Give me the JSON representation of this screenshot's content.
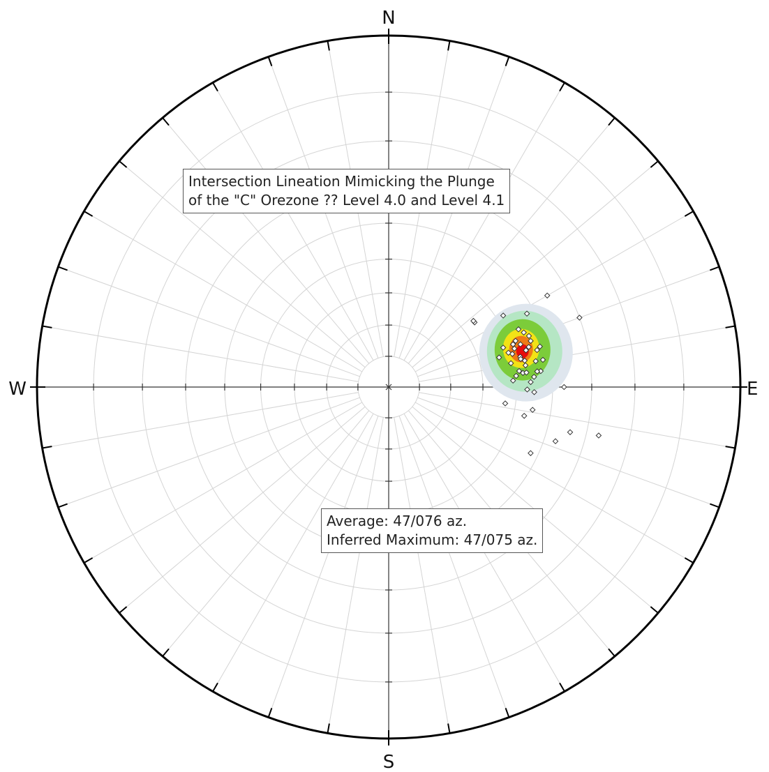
{
  "plot": {
    "compass": {
      "north": "N",
      "south": "S",
      "east": "E",
      "west": "W"
    },
    "colors": {
      "primitive": "#ffffff",
      "grid": "#d4d4d4",
      "axis": "#333333",
      "outline": "#000000",
      "contour_outer": "#dfe6ee",
      "contour_mid": "#b5e6c4",
      "contour_green": "#7ccc3a",
      "contour_yellow": "#f2e216",
      "contour_orange": "#ee7a16",
      "contour_red": "#e80c0c"
    }
  },
  "title_box": {
    "line1": "Intersection Lineation Mimicking the Plunge",
    "line2": "of the \"C\" Orezone ?? Level 4.0 and Level 4.1"
  },
  "stats_box": {
    "line1": "Average: 47/076 az.",
    "line2": "Inferred Maximum: 47/075 az."
  },
  "chart_data": {
    "type": "scatter",
    "projection": "stereonet (lower hemisphere)",
    "title": "Intersection Lineation Mimicking the Plunge of the \"C\" Orezone ?? Level 4.0 and Level 4.1",
    "average": {
      "plunge": 47,
      "trend": 76
    },
    "inferred_maximum": {
      "plunge": 47,
      "trend": 75
    },
    "lineations": [
      {
        "plunge": 37,
        "trend": 90
      },
      {
        "plunge": 48,
        "trend": 58
      },
      {
        "plunge": 48,
        "trend": 84
      },
      {
        "plunge": 30,
        "trend": 70
      },
      {
        "plunge": 35,
        "trend": 60
      },
      {
        "plunge": 34,
        "trend": 104
      },
      {
        "plunge": 45,
        "trend": 99
      },
      {
        "plunge": 47,
        "trend": 102
      },
      {
        "plunge": 37,
        "trend": 108
      },
      {
        "plunge": 42,
        "trend": 115
      },
      {
        "plunge": 27,
        "trend": 103
      },
      {
        "plunge": 56,
        "trend": 53
      },
      {
        "plunge": 56,
        "trend": 52
      },
      {
        "plunge": 52,
        "trend": 71
      },
      {
        "plunge": 54,
        "trend": 75
      },
      {
        "plunge": 48,
        "trend": 77
      },
      {
        "plunge": 49,
        "trend": 71
      },
      {
        "plunge": 47,
        "trend": 72
      },
      {
        "plunge": 45,
        "trend": 74
      },
      {
        "plunge": 44,
        "trend": 72
      },
      {
        "plunge": 45,
        "trend": 68
      },
      {
        "plunge": 51,
        "trend": 79
      },
      {
        "plunge": 48,
        "trend": 70
      },
      {
        "plunge": 48,
        "trend": 78
      },
      {
        "plunge": 44,
        "trend": 80
      },
      {
        "plunge": 47,
        "trend": 84
      },
      {
        "plunge": 51,
        "trend": 87
      },
      {
        "plunge": 43,
        "trend": 84
      },
      {
        "plunge": 42,
        "trend": 80
      },
      {
        "plunge": 45,
        "trend": 86
      },
      {
        "plunge": 49,
        "trend": 83
      },
      {
        "plunge": 42,
        "trend": 75
      },
      {
        "plunge": 50,
        "trend": 75
      },
      {
        "plunge": 46,
        "trend": 66
      },
      {
        "plunge": 47,
        "trend": 91
      },
      {
        "plunge": 46,
        "trend": 75
      },
      {
        "plunge": 44,
        "trend": 70
      },
      {
        "plunge": 49,
        "trend": 73
      },
      {
        "plunge": 47,
        "trend": 79
      },
      {
        "plunge": 43,
        "trend": 76
      },
      {
        "plunge": 47,
        "trend": 81
      },
      {
        "plunge": 51,
        "trend": 74
      },
      {
        "plunge": 50,
        "trend": 85
      },
      {
        "plunge": 46,
        "trend": 88
      },
      {
        "plunge": 45,
        "trend": 92
      },
      {
        "plunge": 42,
        "trend": 62
      },
      {
        "plunge": 53,
        "trend": 98
      },
      {
        "plunge": 44,
        "trend": 84
      }
    ]
  }
}
